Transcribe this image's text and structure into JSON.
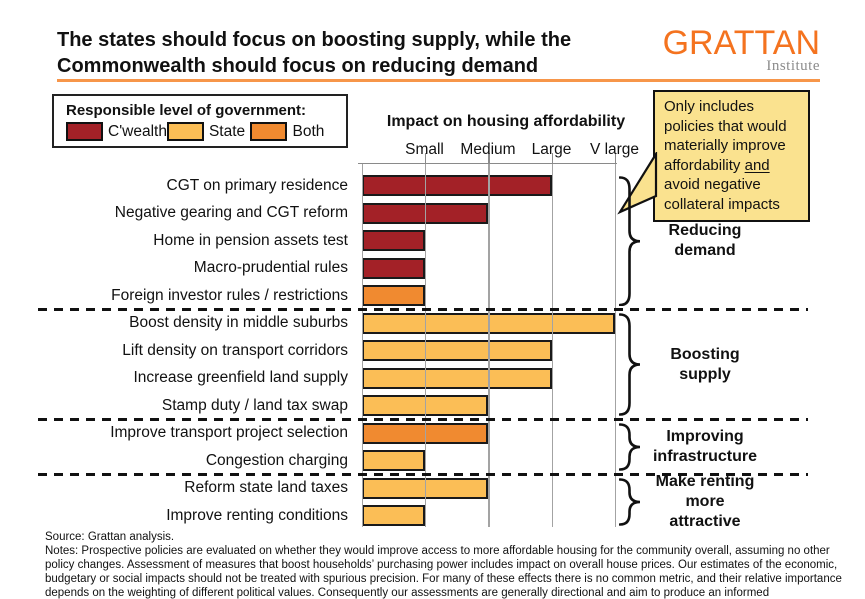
{
  "header": {
    "title_lines": [
      "The states should focus on boosting supply, while the",
      "Commonwealth should focus on reducing demand"
    ],
    "logo": {
      "name": "GRATTAN",
      "subtitle": "Institute",
      "color": "#f4731f"
    }
  },
  "legend": {
    "title": "Responsible level of government:",
    "items": [
      {
        "label": "C'wealth",
        "color": "#a32127"
      },
      {
        "label": "State",
        "color": "#fbbe56"
      },
      {
        "label": "Both",
        "color": "#f08a30"
      }
    ]
  },
  "callout": {
    "text_before": "Only includes policies that would materially improve affordability ",
    "underlined": "and",
    "text_after": " avoid negative collateral impacts",
    "background": "#fae28f"
  },
  "chart_data": {
    "type": "bar",
    "orientation": "horizontal",
    "axis_title": "Impact on housing affordability",
    "x_tick_labels": [
      "Small",
      "Medium",
      "Large",
      "V large"
    ],
    "x_tick_values": [
      1,
      2,
      3,
      4
    ],
    "xlim": [
      0,
      4.3
    ],
    "grid": true,
    "impact_scale": {
      "1": "Small",
      "2": "Medium",
      "3": "Large",
      "4": "V large"
    },
    "level_colors": {
      "C'wealth": "#a32127",
      "State": "#fbbe56",
      "Both": "#f08a30"
    },
    "groups": [
      {
        "label": "Reducing demand",
        "rows": [
          {
            "policy": "CGT on primary residence",
            "level": "C'wealth",
            "impact": 3
          },
          {
            "policy": "Negative gearing and CGT reform",
            "level": "C'wealth",
            "impact": 2
          },
          {
            "policy": "Home in pension assets test",
            "level": "C'wealth",
            "impact": 1
          },
          {
            "policy": "Macro-prudential rules",
            "level": "C'wealth",
            "impact": 1
          },
          {
            "policy": "Foreign investor rules / restrictions",
            "level": "Both",
            "impact": 1
          }
        ]
      },
      {
        "label": "Boosting supply",
        "rows": [
          {
            "policy": "Boost density in middle suburbs",
            "level": "State",
            "impact": 4
          },
          {
            "policy": "Lift density on transport corridors",
            "level": "State",
            "impact": 3
          },
          {
            "policy": "Increase greenfield land supply",
            "level": "State",
            "impact": 3
          },
          {
            "policy": "Stamp duty / land tax swap",
            "level": "State",
            "impact": 2
          }
        ]
      },
      {
        "label": "Improving infrastructure",
        "rows": [
          {
            "policy": "Improve transport project selection",
            "level": "Both",
            "impact": 2
          },
          {
            "policy": "Congestion charging",
            "level": "State",
            "impact": 1
          }
        ]
      },
      {
        "label": "Make renting more attractive",
        "rows": [
          {
            "policy": "Reform state land taxes",
            "level": "State",
            "impact": 2
          },
          {
            "policy": "Improve renting conditions",
            "level": "State",
            "impact": 1
          }
        ]
      }
    ]
  },
  "footer": {
    "source": "Source: Grattan analysis.",
    "notes": "Notes: Prospective policies are evaluated on whether they would improve access to more affordable housing for the community overall, assuming no other policy changes. Assessment of measures that boost households’ purchasing power includes impact on overall house prices. Our estimates of the economic, budgetary or social impacts should not be treated with spurious precision. For many of these effects there is no common metric, and their relative importance depends on the weighting of different political values. Consequently our assessments are generally directional and aim to produce an informed"
  }
}
